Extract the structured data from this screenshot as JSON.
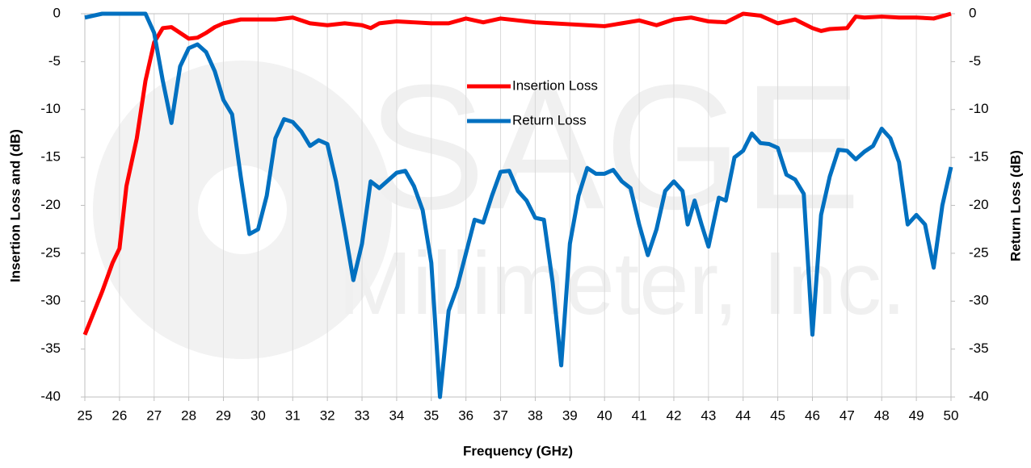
{
  "chart_data": {
    "type": "line",
    "xlabel": "Frequency (GHz)",
    "ylabel": "Insertion Loss and (dB)",
    "y2label": "Return Loss (dB)",
    "watermark": [
      "SAGE",
      "Millimeter, Inc."
    ],
    "xlim": [
      25,
      50
    ],
    "xticks": [
      25,
      26,
      27,
      28,
      29,
      30,
      31,
      32,
      33,
      34,
      35,
      36,
      37,
      38,
      39,
      40,
      41,
      42,
      43,
      44,
      45,
      46,
      47,
      48,
      49,
      50
    ],
    "ylim": [
      -40,
      0
    ],
    "yticks": [
      0,
      -5,
      -10,
      -15,
      -20,
      -25,
      -30,
      -35,
      -40
    ],
    "y2lim": [
      -40,
      0
    ],
    "y2ticks": [
      0,
      -5,
      -10,
      -15,
      -20,
      -25,
      -30,
      -35,
      -40
    ],
    "grid": true,
    "series": [
      {
        "name": "Insertion Loss",
        "color": "#ff0000",
        "x": [
          25,
          25.5,
          25.8,
          26,
          26.2,
          26.5,
          26.75,
          27,
          27.25,
          27.5,
          27.75,
          28,
          28.25,
          28.5,
          28.75,
          29,
          29.5,
          30,
          30.5,
          31,
          31.5,
          32,
          32.5,
          33,
          33.25,
          33.5,
          34,
          34.5,
          35,
          35.5,
          36,
          36.5,
          37,
          37.5,
          38,
          38.5,
          39,
          39.5,
          40,
          40.5,
          41,
          41.5,
          42,
          42.5,
          43,
          43.5,
          44,
          44.5,
          45,
          45.5,
          46,
          46.25,
          46.5,
          47,
          47.25,
          47.5,
          48,
          48.5,
          49,
          49.5,
          50
        ],
        "values": [
          -33.5,
          -29,
          -26,
          -24.5,
          -18,
          -13,
          -7,
          -3,
          -1.5,
          -1.4,
          -2,
          -2.6,
          -2.5,
          -2,
          -1.4,
          -1,
          -0.6,
          -0.6,
          -0.6,
          -0.4,
          -1,
          -1.2,
          -1,
          -1.2,
          -1.5,
          -1,
          -0.8,
          -0.9,
          -1,
          -1,
          -0.5,
          -0.9,
          -0.5,
          -0.7,
          -0.9,
          -1,
          -1.1,
          -1.2,
          -1.3,
          -1,
          -0.7,
          -1.2,
          -0.6,
          -0.4,
          -0.8,
          -0.9,
          0,
          -0.2,
          -1,
          -0.6,
          -1.5,
          -1.8,
          -1.6,
          -1.5,
          -0.3,
          -0.4,
          -0.3,
          -0.4,
          -0.4,
          -0.5,
          0
        ]
      },
      {
        "name": "Return Loss",
        "color": "#0070c0",
        "axis": "y2",
        "x": [
          25,
          25.5,
          26,
          26.5,
          26.75,
          27,
          27.25,
          27.5,
          27.75,
          28,
          28.25,
          28.5,
          28.75,
          29,
          29.25,
          29.5,
          29.75,
          30,
          30.25,
          30.5,
          30.75,
          31,
          31.25,
          31.5,
          31.75,
          32,
          32.25,
          32.5,
          32.75,
          33,
          33.25,
          33.5,
          33.75,
          34,
          34.25,
          34.5,
          34.75,
          35,
          35.25,
          35.5,
          35.75,
          36,
          36.25,
          36.5,
          36.75,
          37,
          37.25,
          37.5,
          37.75,
          38,
          38.25,
          38.5,
          38.75,
          39,
          39.25,
          39.5,
          39.75,
          40,
          40.25,
          40.5,
          40.75,
          41,
          41.25,
          41.5,
          41.75,
          42,
          42.25,
          42.4,
          42.6,
          42.8,
          43,
          43.3,
          43.5,
          43.75,
          44,
          44.25,
          44.5,
          44.75,
          45,
          45.25,
          45.5,
          45.75,
          46,
          46.25,
          46.5,
          46.75,
          47,
          47.25,
          47.5,
          47.75,
          48,
          48.25,
          48.5,
          48.75,
          49,
          49.25,
          49.5,
          49.75,
          50
        ],
        "values": [
          -0.4,
          0,
          0,
          0,
          0,
          -2,
          -7,
          -11.4,
          -5.5,
          -3.6,
          -3.2,
          -4,
          -6,
          -9,
          -10.5,
          -17,
          -23,
          -22.5,
          -19,
          -13,
          -11,
          -11.3,
          -12.3,
          -13.8,
          -13.2,
          -13.6,
          -17.5,
          -22.5,
          -27.8,
          -24,
          -17.5,
          -18.2,
          -17.4,
          -16.6,
          -16.4,
          -18,
          -20.5,
          -26,
          -40,
          -31,
          -28.5,
          -25,
          -21.5,
          -21.8,
          -19,
          -16.5,
          -16.4,
          -18.5,
          -19.5,
          -21.3,
          -21.5,
          -28,
          -36.7,
          -24,
          -19,
          -16.1,
          -16.7,
          -16.7,
          -16.3,
          -17.5,
          -18.2,
          -22,
          -25.2,
          -22.5,
          -18.5,
          -17.5,
          -18.5,
          -22,
          -19.5,
          -22,
          -24.3,
          -19.2,
          -19.5,
          -15,
          -14.3,
          -12.5,
          -13.5,
          -13.6,
          -14,
          -16.8,
          -17.3,
          -18.8,
          -33.5,
          -21,
          -17,
          -14.2,
          -14.3,
          -15.2,
          -14.4,
          -13.8,
          -12,
          -13,
          -15.5,
          -22,
          -21,
          -22,
          -26.5,
          -20,
          -16
        ]
      }
    ]
  }
}
